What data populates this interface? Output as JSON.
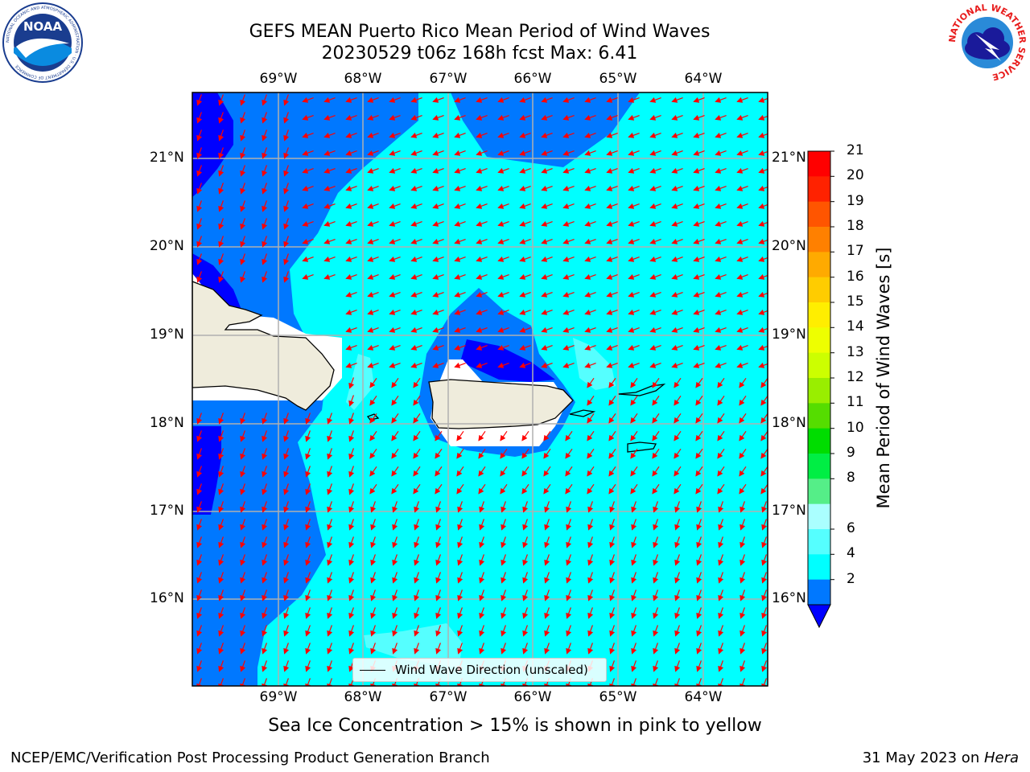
{
  "title": {
    "line1": "GEFS MEAN Puerto Rico Mean Period of Wind Waves",
    "line2": "20230529 t06z 168h fcst   Max: 6.41"
  },
  "logos": {
    "left": "NOAA",
    "left_ring_text": "NATIONAL OCEANIC AND ATMOSPHERIC ADMINISTRATION · U.S. DEPARTMENT OF COMMERCE",
    "right_ring_text": "NATIONAL WEATHER SERVICE"
  },
  "map": {
    "lon_ticks": [
      "69°W",
      "68°W",
      "67°W",
      "66°W",
      "65°W",
      "64°W"
    ],
    "lat_ticks": [
      "21°N",
      "20°N",
      "19°N",
      "18°N",
      "17°N",
      "16°N"
    ],
    "legend_label": "Wind Wave Direction (unscaled)",
    "arrow_color": "#ff0000",
    "land_color": "#efecdc",
    "grid_color": "#b0b0b0"
  },
  "colorbar": {
    "title": "Mean Period of Wind Waves [s]",
    "ticks": [
      "21",
      "20",
      "19",
      "18",
      "17",
      "16",
      "15",
      "14",
      "13",
      "12",
      "11",
      "10",
      "9",
      "8",
      "6",
      "4",
      "2"
    ],
    "colors_top_to_bottom": [
      "#ff0000",
      "#ff2200",
      "#ff5500",
      "#ff8000",
      "#ffaa00",
      "#ffcc00",
      "#ffee00",
      "#eeff00",
      "#ccff00",
      "#99ee00",
      "#55dd00",
      "#00dd00",
      "#00ee44",
      "#55ee88",
      "#aaffff",
      "#55ffff",
      "#00ffff",
      "#0078ff"
    ],
    "under_color": "#0000ff"
  },
  "notes": {
    "sea_ice": "Sea Ice Concentration > 15% is shown in pink to yellow"
  },
  "footer": {
    "left": "NCEP/EMC/Verification Post Processing Product Generation Branch",
    "right_prefix": "31 May 2023 on ",
    "right_machine": "Hera"
  }
}
